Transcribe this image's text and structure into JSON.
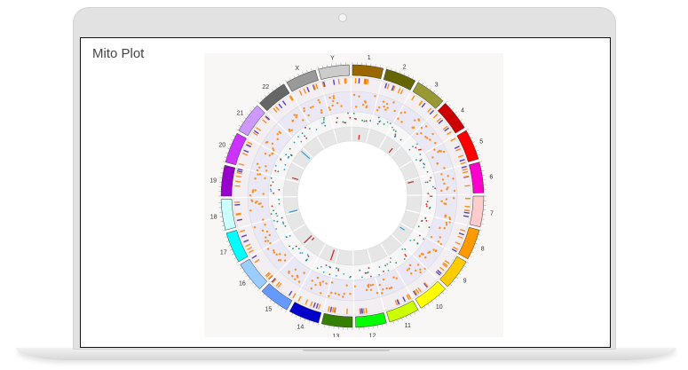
{
  "screen": {
    "title": "Mito Plot"
  },
  "chart_data": {
    "type": "circos",
    "chromosomes": [
      "1",
      "2",
      "3",
      "4",
      "5",
      "6",
      "7",
      "8",
      "9",
      "10",
      "11",
      "12",
      "13",
      "14",
      "15",
      "16",
      "17",
      "18",
      "19",
      "20",
      "21",
      "22",
      "X",
      "Y"
    ],
    "colors": [
      "#996600",
      "#666600",
      "#999933",
      "#cc0000",
      "#ff0000",
      "#ff00cc",
      "#ffcccc",
      "#ff9900",
      "#ffcc00",
      "#ffff00",
      "#ccff00",
      "#00ff00",
      "#358000",
      "#0000cc",
      "#6699ff",
      "#99ccff",
      "#00ffff",
      "#ccffff",
      "#9900cc",
      "#cc33ff",
      "#cc99ff",
      "#666666",
      "#999999",
      "#cccccc"
    ],
    "title": ""
  }
}
